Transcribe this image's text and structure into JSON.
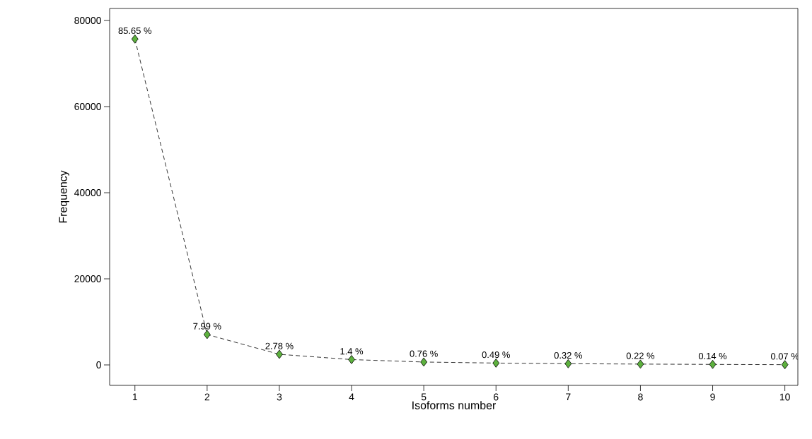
{
  "chart_data": {
    "type": "line",
    "xlabel": "Isoforms number",
    "ylabel": "Frequency",
    "x": [
      1,
      2,
      3,
      4,
      5,
      6,
      7,
      8,
      9,
      10
    ],
    "series": [
      {
        "color": "#5db13e",
        "values": [
          75700,
          7060,
          2460,
          1240,
          670,
          430,
          280,
          190,
          120,
          60
        ]
      }
    ],
    "annotations": [
      {
        "text": "85.65 %",
        "x": 1,
        "y": 75700
      },
      {
        "text": "7.99 %",
        "x": 2,
        "y": 7060
      },
      {
        "text": "2.78 %",
        "x": 3,
        "y": 2460
      },
      {
        "text": "1.4 %",
        "x": 4,
        "y": 1240
      },
      {
        "text": "0.76 %",
        "x": 5,
        "y": 670
      },
      {
        "text": "0.49 %",
        "x": 6,
        "y": 430
      },
      {
        "text": "0.32 %",
        "x": 7,
        "y": 280
      },
      {
        "text": "0.22 %",
        "x": 8,
        "y": 190
      },
      {
        "text": "0.14 %",
        "x": 9,
        "y": 120
      },
      {
        "text": "0.07 %",
        "x": 10,
        "y": 60
      }
    ],
    "xlim": [
      0.65,
      10.18
    ],
    "ylim": [
      -4750,
      82800
    ],
    "xticks": [
      1,
      2,
      3,
      4,
      5,
      6,
      7,
      8,
      9,
      10
    ],
    "yticks": [
      0,
      20000,
      40000,
      60000,
      80000
    ],
    "marker": "diamond",
    "line_style": "dashed",
    "grid": false
  }
}
